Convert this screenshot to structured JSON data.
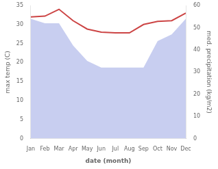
{
  "chart_data": {
    "type": "line",
    "categories": [
      "Jan",
      "Feb",
      "Mar",
      "Apr",
      "May",
      "Jun",
      "Jul",
      "Aug",
      "Sep",
      "Oct",
      "Nov",
      "Dec"
    ],
    "series": [
      {
        "type": "area",
        "axis": "y2",
        "color": "#c8cef0",
        "values": [
          54.0,
          52.0,
          52.0,
          42.0,
          35.0,
          32.0,
          32.0,
          32.0,
          32.0,
          44.0,
          47.0,
          54.0
        ]
      },
      {
        "type": "line",
        "color": "#cc4444",
        "values": [
          32.0,
          32.2,
          34.0,
          31.0,
          28.8,
          28.0,
          27.8,
          27.8,
          30.0,
          30.8,
          31.0,
          33.0
        ]
      }
    ],
    "xlabel": "date (month)",
    "ylabel": "max temp (C)",
    "y2label": "med. precipitation (kg/m2)",
    "ylim": [
      0,
      35
    ],
    "yticks": [
      0,
      5,
      10,
      15,
      20,
      25,
      30,
      35
    ],
    "y2lim": [
      0,
      60
    ],
    "y2ticks": [
      0,
      10,
      20,
      30,
      40,
      50,
      60
    ],
    "grid": false
  }
}
